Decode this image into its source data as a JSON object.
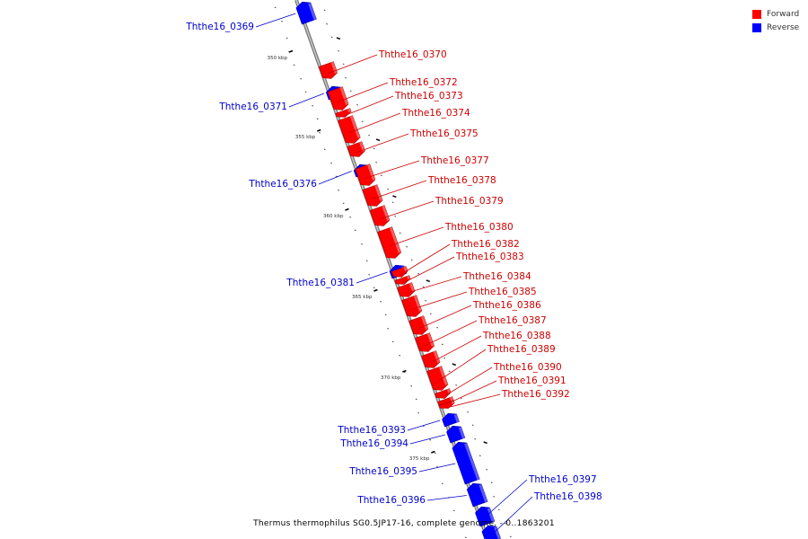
{
  "legend": {
    "forward": {
      "label": "Forward",
      "color": "#ff0000"
    },
    "reverse": {
      "label": "Reverse",
      "color": "#0000ff"
    }
  },
  "colors": {
    "forward_label": "#cc0000",
    "reverse_label": "#0000cc",
    "axis": "#888888"
  },
  "ticks": [
    "350 kbp",
    "355 kbp",
    "360 kbp",
    "365 kbp",
    "370 kbp",
    "375 kbp"
  ],
  "genes": [
    {
      "id": "Ththe16_0369",
      "strand": "reverse"
    },
    {
      "id": "Ththe16_0370",
      "strand": "forward"
    },
    {
      "id": "Ththe16_0371",
      "strand": "reverse"
    },
    {
      "id": "Ththe16_0372",
      "strand": "forward"
    },
    {
      "id": "Ththe16_0373",
      "strand": "forward"
    },
    {
      "id": "Ththe16_0374",
      "strand": "forward"
    },
    {
      "id": "Ththe16_0375",
      "strand": "forward"
    },
    {
      "id": "Ththe16_0376",
      "strand": "reverse"
    },
    {
      "id": "Ththe16_0377",
      "strand": "forward"
    },
    {
      "id": "Ththe16_0378",
      "strand": "forward"
    },
    {
      "id": "Ththe16_0379",
      "strand": "forward"
    },
    {
      "id": "Ththe16_0380",
      "strand": "forward"
    },
    {
      "id": "Ththe16_0381",
      "strand": "reverse"
    },
    {
      "id": "Ththe16_0382",
      "strand": "forward"
    },
    {
      "id": "Ththe16_0383",
      "strand": "forward"
    },
    {
      "id": "Ththe16_0384",
      "strand": "forward"
    },
    {
      "id": "Ththe16_0385",
      "strand": "forward"
    },
    {
      "id": "Ththe16_0386",
      "strand": "forward"
    },
    {
      "id": "Ththe16_0387",
      "strand": "forward"
    },
    {
      "id": "Ththe16_0388",
      "strand": "forward"
    },
    {
      "id": "Ththe16_0389",
      "strand": "forward"
    },
    {
      "id": "Ththe16_0390",
      "strand": "forward"
    },
    {
      "id": "Ththe16_0391",
      "strand": "forward"
    },
    {
      "id": "Ththe16_0392",
      "strand": "forward"
    },
    {
      "id": "Ththe16_0393",
      "strand": "reverse"
    },
    {
      "id": "Ththe16_0394",
      "strand": "reverse"
    },
    {
      "id": "Ththe16_0395",
      "strand": "reverse"
    },
    {
      "id": "Ththe16_0396",
      "strand": "reverse"
    },
    {
      "id": "Ththe16_0397",
      "strand": "reverse"
    },
    {
      "id": "Ththe16_0398",
      "strand": "reverse"
    }
  ],
  "caption": "Thermus thermophilus SG0.5JP17-16, complete genome. - 0..1863201"
}
